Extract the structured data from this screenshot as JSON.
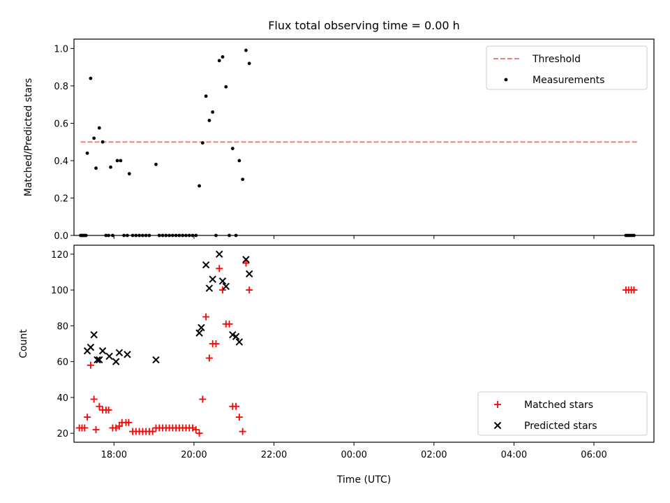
{
  "title": "Flux total observing time = 0.00 h",
  "chart_data": [
    {
      "type": "scatter",
      "ylabel": "Matched/Predicted stars",
      "xlabel": "",
      "x_axis": "time of day UTC, continuing past midnight",
      "xlim": [
        "17:00",
        "07:30"
      ],
      "ylim": [
        0,
        1.05
      ],
      "yticks": [
        0.0,
        0.2,
        0.4,
        0.6,
        0.8,
        1.0
      ],
      "ytick_labels": [
        "0.0",
        "0.2",
        "0.4",
        "0.6",
        "0.8",
        "1.0"
      ],
      "xtick_labels": [
        "18:00",
        "20:00",
        "22:00",
        "00:00",
        "02:00",
        "04:00",
        "06:00"
      ],
      "show_xtick_labels": false,
      "legend_position": "top-right",
      "legend": [
        {
          "label": "Threshold",
          "marker": "dashed-line",
          "color": "#f08080"
        },
        {
          "label": "Measurements",
          "marker": "dot",
          "color": "#000000"
        }
      ],
      "threshold": {
        "y": 0.5,
        "x_start": "17:10",
        "x_end": "07:05"
      },
      "series": [
        {
          "name": "Measurements",
          "marker": "dot",
          "color": "#000000",
          "points": [
            [
              "17:10",
              0
            ],
            [
              "17:12",
              0
            ],
            [
              "17:14",
              0
            ],
            [
              "17:16",
              0
            ],
            [
              "17:18",
              0
            ],
            [
              "17:20",
              0.44
            ],
            [
              "17:25",
              0.84
            ],
            [
              "17:30",
              0.52
            ],
            [
              "17:33",
              0.36
            ],
            [
              "17:38",
              0.575
            ],
            [
              "17:43",
              0.5
            ],
            [
              "17:48",
              0
            ],
            [
              "17:52",
              0
            ],
            [
              "17:55",
              0.365
            ],
            [
              "17:58",
              0
            ],
            [
              "18:05",
              0.4
            ],
            [
              "18:10",
              0.4
            ],
            [
              "18:15",
              0
            ],
            [
              "18:20",
              0
            ],
            [
              "18:23",
              0.33
            ],
            [
              "18:28",
              0
            ],
            [
              "18:33",
              0
            ],
            [
              "18:38",
              0
            ],
            [
              "18:43",
              0
            ],
            [
              "18:48",
              0
            ],
            [
              "18:53",
              0
            ],
            [
              "19:03",
              0.38
            ],
            [
              "19:08",
              0
            ],
            [
              "19:13",
              0
            ],
            [
              "19:18",
              0
            ],
            [
              "19:23",
              0
            ],
            [
              "19:28",
              0
            ],
            [
              "19:33",
              0
            ],
            [
              "19:38",
              0
            ],
            [
              "19:43",
              0
            ],
            [
              "19:48",
              0
            ],
            [
              "19:53",
              0
            ],
            [
              "19:58",
              0
            ],
            [
              "20:03",
              0
            ],
            [
              "20:08",
              0.265
            ],
            [
              "20:13",
              0.495
            ],
            [
              "20:18",
              0.745
            ],
            [
              "20:23",
              0.615
            ],
            [
              "20:28",
              0.66
            ],
            [
              "20:33",
              0
            ],
            [
              "20:38",
              0.935
            ],
            [
              "20:43",
              0.955
            ],
            [
              "20:48",
              0.795
            ],
            [
              "20:53",
              0
            ],
            [
              "20:58",
              0.465
            ],
            [
              "21:03",
              0
            ],
            [
              "21:08",
              0.4
            ],
            [
              "21:13",
              0.3
            ],
            [
              "21:18",
              0.99
            ],
            [
              "21:23",
              0.92
            ],
            [
              "06:48",
              0
            ],
            [
              "06:51",
              0
            ],
            [
              "06:54",
              0
            ],
            [
              "06:57",
              0
            ],
            [
              "07:00",
              0
            ]
          ]
        }
      ]
    },
    {
      "type": "scatter",
      "ylabel": "Count",
      "xlabel": "Time (UTC)",
      "x_axis": "time of day UTC, continuing past midnight",
      "xlim": [
        "17:00",
        "07:30"
      ],
      "ylim": [
        15,
        125
      ],
      "yticks": [
        20,
        40,
        60,
        80,
        100,
        120
      ],
      "ytick_labels": [
        "20",
        "40",
        "60",
        "80",
        "100",
        "120"
      ],
      "xtick_labels": [
        "18:00",
        "20:00",
        "22:00",
        "00:00",
        "02:00",
        "04:00",
        "06:00"
      ],
      "show_xtick_labels": true,
      "legend_position": "lower-right",
      "legend": [
        {
          "label": "Matched stars",
          "marker": "plus",
          "color": "#ff0000"
        },
        {
          "label": "Predicted stars",
          "marker": "x",
          "color": "#000000"
        }
      ],
      "series": [
        {
          "name": "Matched stars",
          "marker": "plus",
          "color": "#ff0000",
          "points": [
            [
              "17:08",
              23
            ],
            [
              "17:12",
              23
            ],
            [
              "17:16",
              23
            ],
            [
              "17:20",
              29
            ],
            [
              "17:25",
              58
            ],
            [
              "17:30",
              39
            ],
            [
              "17:33",
              22
            ],
            [
              "17:38",
              35
            ],
            [
              "17:43",
              33
            ],
            [
              "17:48",
              33
            ],
            [
              "17:52",
              33
            ],
            [
              "17:58",
              23
            ],
            [
              "18:03",
              23
            ],
            [
              "18:08",
              24
            ],
            [
              "18:12",
              26
            ],
            [
              "18:18",
              26
            ],
            [
              "18:22",
              26
            ],
            [
              "18:28",
              21
            ],
            [
              "18:33",
              21
            ],
            [
              "18:38",
              21
            ],
            [
              "18:43",
              21
            ],
            [
              "18:48",
              21
            ],
            [
              "18:53",
              21
            ],
            [
              "18:58",
              21
            ],
            [
              "19:03",
              23
            ],
            [
              "19:08",
              23
            ],
            [
              "19:13",
              23
            ],
            [
              "19:18",
              23
            ],
            [
              "19:23",
              23
            ],
            [
              "19:28",
              23
            ],
            [
              "19:33",
              23
            ],
            [
              "19:38",
              23
            ],
            [
              "19:43",
              23
            ],
            [
              "19:48",
              23
            ],
            [
              "19:53",
              23
            ],
            [
              "19:58",
              23
            ],
            [
              "20:03",
              22
            ],
            [
              "20:08",
              20
            ],
            [
              "20:13",
              39
            ],
            [
              "20:18",
              85
            ],
            [
              "20:23",
              62
            ],
            [
              "20:28",
              70
            ],
            [
              "20:33",
              70
            ],
            [
              "20:38",
              112
            ],
            [
              "20:43",
              100
            ],
            [
              "20:48",
              81
            ],
            [
              "20:53",
              81
            ],
            [
              "20:58",
              35
            ],
            [
              "21:03",
              35
            ],
            [
              "21:08",
              29
            ],
            [
              "21:13",
              21
            ],
            [
              "21:18",
              115
            ],
            [
              "21:23",
              100
            ],
            [
              "06:48",
              100
            ],
            [
              "06:52",
              100
            ],
            [
              "06:56",
              100
            ],
            [
              "07:00",
              100
            ]
          ]
        },
        {
          "name": "Predicted stars",
          "marker": "x",
          "color": "#000000",
          "points": [
            [
              "17:20",
              66
            ],
            [
              "17:25",
              68
            ],
            [
              "17:30",
              75
            ],
            [
              "17:35",
              61
            ],
            [
              "17:38",
              61
            ],
            [
              "17:43",
              66
            ],
            [
              "17:53",
              63
            ],
            [
              "18:03",
              60
            ],
            [
              "18:08",
              65
            ],
            [
              "18:20",
              64
            ],
            [
              "19:03",
              61
            ],
            [
              "20:08",
              76
            ],
            [
              "20:11",
              79
            ],
            [
              "20:18",
              114
            ],
            [
              "20:23",
              101
            ],
            [
              "20:28",
              106
            ],
            [
              "20:38",
              120
            ],
            [
              "20:43",
              105
            ],
            [
              "20:48",
              102
            ],
            [
              "20:58",
              75
            ],
            [
              "21:03",
              74
            ],
            [
              "21:08",
              71
            ],
            [
              "21:18",
              117
            ],
            [
              "21:23",
              109
            ]
          ]
        }
      ]
    }
  ]
}
